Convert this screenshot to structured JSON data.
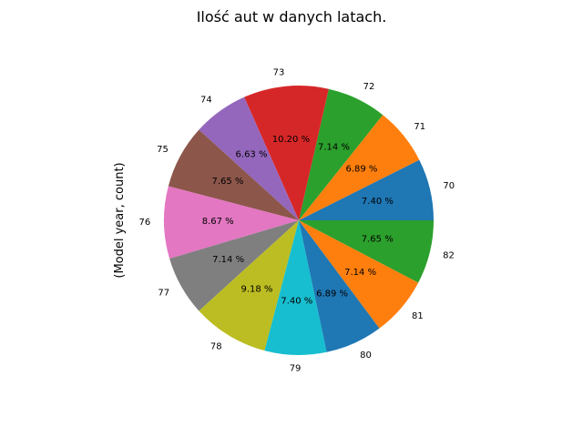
{
  "chart_data": {
    "type": "pie",
    "title": "Ilość aut w danych latach.",
    "ylabel": "(Model year, count)",
    "start_angle_deg": 0,
    "direction": "counterclockwise",
    "categories": [
      "70",
      "71",
      "72",
      "73",
      "74",
      "75",
      "76",
      "77",
      "78",
      "79",
      "80",
      "81",
      "82"
    ],
    "values": [
      7.4,
      6.89,
      7.14,
      10.2,
      6.63,
      7.65,
      8.67,
      7.14,
      9.18,
      7.4,
      6.89,
      7.14,
      7.65
    ],
    "labels": [
      "7.40 %",
      "6.89 %",
      "7.14 %",
      "10.20 %",
      "6.63 %",
      "7.65 %",
      "8.67 %",
      "7.14 %",
      "9.18 %",
      "7.40 %",
      "6.89 %",
      "7.14 %",
      "7.65 %"
    ],
    "colors": [
      "#1f77b4",
      "#ff7f0e",
      "#2ca02c",
      "#d62728",
      "#9467bd",
      "#8c564b",
      "#e377c2",
      "#7f7f7f",
      "#bcbd22",
      "#17becf",
      "#1f77b4",
      "#ff7f0e",
      "#2ca02c"
    ]
  }
}
